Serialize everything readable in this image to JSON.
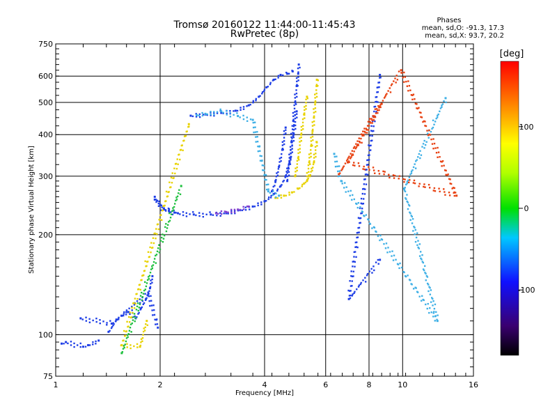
{
  "chart_data": {
    "type": "scatter",
    "title": "Tromsø 20160122 11:44:00-11:45:43",
    "subtitle": "RwPretec (8p)",
    "xlabel": "Frequency [MHz]",
    "ylabel": "Stationary phase Virtual Height [km]",
    "xscale": "log",
    "yscale": "log",
    "xlim": [
      1,
      16
    ],
    "ylim": [
      75,
      750
    ],
    "x_ticks": [
      1,
      2,
      4,
      6,
      8,
      10,
      16
    ],
    "x_tick_labels": [
      "1",
      "2",
      "4",
      "6",
      "8",
      "10",
      "16"
    ],
    "y_ticks": [
      75,
      100,
      200,
      300,
      400,
      500,
      600,
      750
    ],
    "y_tick_labels": [
      "75",
      "100",
      "200",
      "300",
      "400",
      "500",
      "600",
      "750"
    ],
    "grid": true,
    "stats": {
      "heading": "Phases",
      "line1": "mean, sd,O: -91.3, 17.3",
      "line2": "mean, sd,X:  93.7, 20.2"
    },
    "colorbar": {
      "label": "[deg]",
      "range": [
        -180,
        180
      ],
      "ticks": [
        100,
        0,
        -100
      ],
      "tick_labels": [
        "100",
        "0",
        "-100"
      ]
    },
    "series": [
      {
        "mode": "O",
        "color": "#1e3ee6",
        "segments": [
          {
            "x": [
              1.93,
              2.05,
              2.25,
              2.5,
              2.8,
              3.1,
              3.4,
              3.7,
              4.0,
              4.25,
              4.45,
              4.6,
              4.75,
              4.85,
              4.95
            ],
            "y": [
              255,
              238,
              232,
              230,
              230,
              232,
              237,
              243,
              252,
              265,
              280,
              300,
              340,
              400,
              470
            ]
          },
          {
            "x": [
              1.93,
              1.96,
              2.0,
              2.05,
              2.12,
              2.2
            ],
            "y": [
              260,
              253,
              246,
              240,
              236,
              233
            ]
          },
          {
            "x": [
              2.45,
              2.7,
              3.0,
              3.3,
              3.6,
              3.85,
              4.05,
              4.25,
              4.45,
              4.65,
              4.82
            ],
            "y": [
              456,
              460,
              465,
              472,
              490,
              520,
              555,
              585,
              605,
              610,
              620
            ]
          },
          {
            "x": [
              4.65,
              4.72,
              4.78,
              4.84,
              4.9,
              4.95,
              5.0,
              5.02
            ],
            "y": [
              290,
              330,
              380,
              440,
              500,
              560,
              610,
              650
            ]
          },
          {
            "x": [
              4.2,
              4.3,
              4.4,
              4.5,
              4.6
            ],
            "y": [
              270,
              290,
              320,
              360,
              420
            ]
          },
          {
            "x": [
              1.04,
              1.07,
              1.2,
              1.24,
              1.33
            ],
            "y": [
              94,
              95,
              92,
              93,
              96
            ]
          },
          {
            "x": [
              1.42,
              1.5,
              1.55,
              1.62,
              1.7,
              1.76,
              1.82,
              1.87,
              1.9
            ],
            "y": [
              102,
              111,
              114,
              117,
              112,
              120,
              128,
              138,
              150
            ]
          },
          {
            "x": [
              1.18,
              1.45,
              1.85,
              1.97
            ],
            "y": [
              112,
              108,
              133,
              105
            ]
          },
          {
            "x": [
              8.6,
              7.0,
              8.6
            ],
            "y": [
              605,
              128,
              168
            ]
          }
        ]
      },
      {
        "mode": "X",
        "color": "#e8d200",
        "segments": [
          {
            "x": [
              4.3,
              4.55,
              4.8,
              5.0,
              5.2,
              5.4,
              5.55,
              5.65
            ],
            "y": [
              258,
              262,
              268,
              275,
              285,
              300,
              330,
              380
            ]
          },
          {
            "x": [
              5.3,
              5.38,
              5.45,
              5.5,
              5.55,
              5.6,
              5.65,
              5.66
            ],
            "y": [
              290,
              330,
              370,
              410,
              450,
              500,
              560,
              585
            ]
          },
          {
            "x": [
              4.9,
              5.0,
              5.1,
              5.2,
              5.3
            ],
            "y": [
              300,
              340,
              400,
              460,
              520
            ]
          },
          {
            "x": [
              2.42,
              1.55,
              1.75,
              1.83
            ],
            "y": [
              430,
              93,
              92,
              110
            ]
          }
        ]
      },
      {
        "mode": "mixed",
        "color": "#3fb0e6",
        "segments": [
          {
            "x": [
              2.55,
              2.7,
              3.0,
              3.35,
              3.7,
              4.1,
              4.4
            ],
            "y": [
              458,
              462,
              470,
              455,
              443,
              270,
              262
            ]
          },
          {
            "x": [
              6.35,
              6.65,
              12.6,
              10.1,
              13.3
            ],
            "y": [
              350,
              290,
              110,
              275,
              515
            ]
          }
        ]
      },
      {
        "mode": "mixed",
        "color": "#e84010",
        "segments": [
          {
            "x": [
              6.55,
              9.9,
              14.3,
              6.95,
              8.7
            ],
            "y": [
              304,
              625,
              262,
              330,
              495
            ]
          }
        ]
      },
      {
        "mode": "mixed",
        "color": "#8040d0",
        "segments": [
          {
            "x": [
              2.9,
              3.1,
              3.35,
              3.6
            ],
            "y": [
              232,
              234,
              238,
              243
            ]
          }
        ]
      },
      {
        "mode": "mixed",
        "color": "#20c040",
        "segments": [
          {
            "x": [
              1.55,
              2.3
            ],
            "y": [
              88,
              280
            ]
          }
        ]
      }
    ]
  }
}
